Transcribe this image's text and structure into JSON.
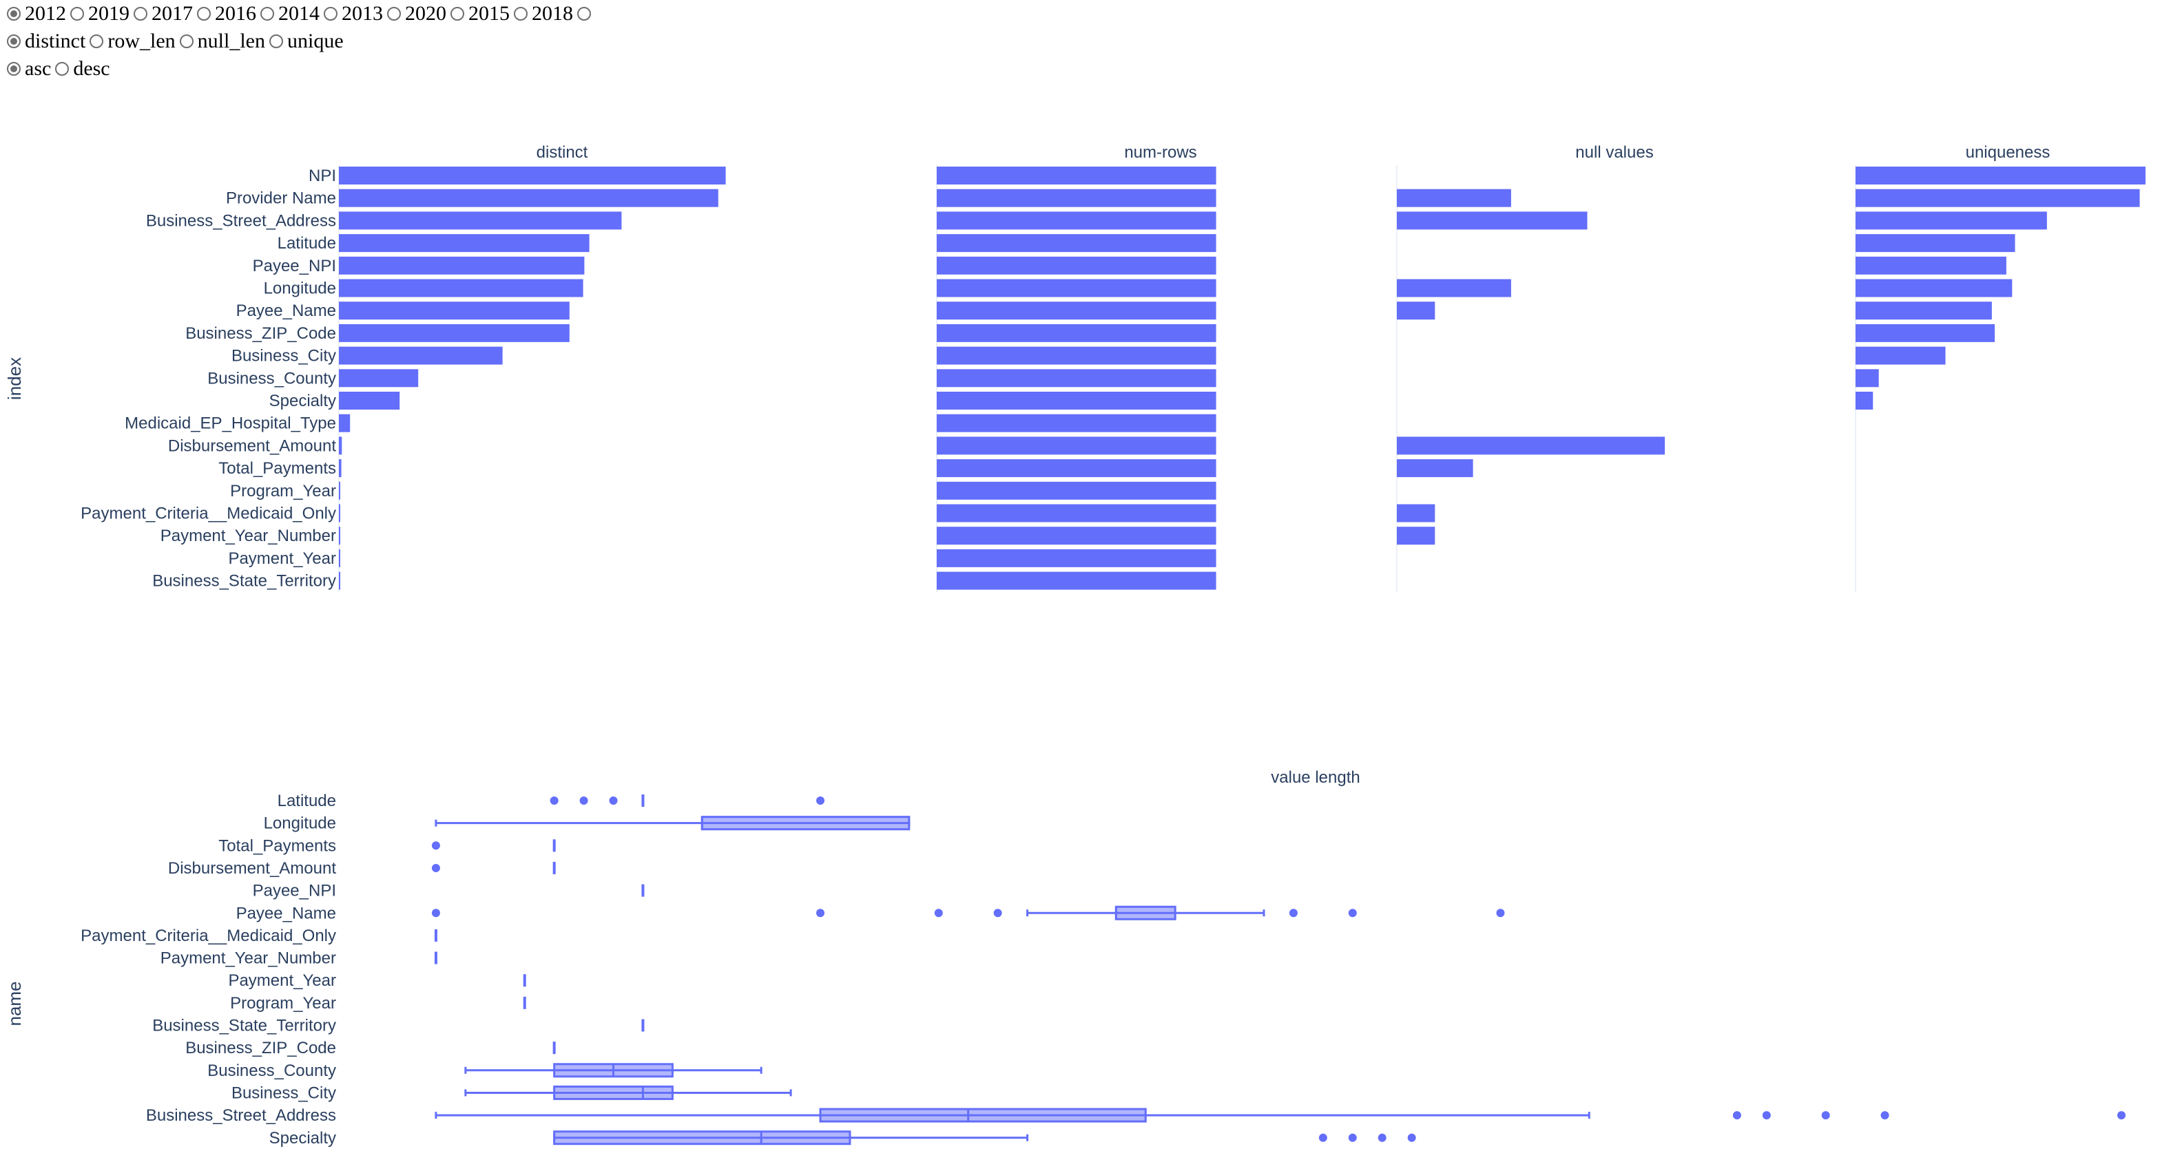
{
  "controls": {
    "year_options": [
      {
        "label": "2012",
        "checked": true
      },
      {
        "label": "2019",
        "checked": false
      },
      {
        "label": "2017",
        "checked": false
      },
      {
        "label": "2016",
        "checked": false
      },
      {
        "label": "2014",
        "checked": false
      },
      {
        "label": "2013",
        "checked": false
      },
      {
        "label": "2020",
        "checked": false
      },
      {
        "label": "2015",
        "checked": false
      },
      {
        "label": "2018",
        "checked": false
      },
      {
        "label": "",
        "checked": false
      }
    ],
    "metric_options": [
      {
        "label": "distinct",
        "checked": true
      },
      {
        "label": "row_len",
        "checked": false
      },
      {
        "label": "null_len",
        "checked": false
      },
      {
        "label": "unique",
        "checked": false
      }
    ],
    "order_options": [
      {
        "label": "asc",
        "checked": true
      },
      {
        "label": "desc",
        "checked": false
      }
    ]
  },
  "colors": {
    "bar": "#636efa",
    "box_fill": "rgba(99,110,250,0.5)",
    "axis_text": "#2a3f5f",
    "grid": "#ebf0f8"
  },
  "chart_data": [
    {
      "type": "bar",
      "orientation": "horizontal",
      "ylabel": "index",
      "categories": [
        "NPI",
        "Provider Name",
        "Business_Street_Address",
        "Latitude",
        "Payee_NPI",
        "Longitude",
        "Payee_Name",
        "Business_ZIP_Code",
        "Business_City",
        "Business_County",
        "Specialty",
        "Medicaid_EP_Hospital_Type",
        "Disbursement_Amount",
        "Total_Payments",
        "Program_Year",
        "Payment_Criteria__Medicaid_Only",
        "Payment_Year_Number",
        "Payment_Year",
        "Business_State_Territory"
      ],
      "panels": [
        {
          "title": "distinct",
          "xlim": [
            0,
            1800
          ],
          "values": [
            1560,
            1530,
            1140,
            1010,
            990,
            985,
            930,
            930,
            660,
            320,
            245,
            45,
            12,
            10,
            3,
            2,
            2,
            1,
            1
          ]
        },
        {
          "title": "num-rows",
          "xlim": [
            0,
            2500
          ],
          "values": [
            1560,
            1560,
            1560,
            1560,
            1560,
            1560,
            1560,
            1560,
            1560,
            1560,
            1560,
            1560,
            1560,
            1560,
            1560,
            1560,
            1560,
            1560,
            1560
          ]
        },
        {
          "title": "null values",
          "xlim": [
            0,
            1600
          ],
          "values": [
            0,
            420,
            700,
            0,
            0,
            420,
            140,
            0,
            0,
            0,
            0,
            0,
            985,
            280,
            0,
            140,
            140,
            0,
            0
          ]
        },
        {
          "title": "uniqueness",
          "xlim": [
            0,
            1.05
          ],
          "values": [
            1.0,
            0.98,
            0.66,
            0.55,
            0.52,
            0.54,
            0.47,
            0.48,
            0.31,
            0.08,
            0.06,
            0,
            0,
            0,
            0,
            0,
            0,
            0,
            0
          ]
        }
      ]
    },
    {
      "type": "box",
      "orientation": "horizontal",
      "title": "value length",
      "ylabel": "name",
      "xlim": [
        0,
        58
      ],
      "boxes": [
        {
          "name": "Latitude",
          "min": 8,
          "q1": 8,
          "median": 8,
          "q3": 8,
          "max": 8,
          "outliers": [
            5,
            6,
            7,
            14
          ]
        },
        {
          "name": "Longitude",
          "min": 1,
          "q1": 10,
          "median": 10,
          "q3": 17,
          "max": 17,
          "outliers": []
        },
        {
          "name": "Total_Payments",
          "min": 5,
          "q1": 5,
          "median": 5,
          "q3": 5,
          "max": 5,
          "outliers": [
            1
          ]
        },
        {
          "name": "Disbursement_Amount",
          "min": 5,
          "q1": 5,
          "median": 5,
          "q3": 5,
          "max": 5,
          "outliers": [
            1
          ]
        },
        {
          "name": "Payee_NPI",
          "min": 8,
          "q1": 8,
          "median": 8,
          "q3": 8,
          "max": 8,
          "outliers": []
        },
        {
          "name": "Payee_Name",
          "min": 21,
          "q1": 24,
          "median": 24,
          "q3": 26,
          "max": 29,
          "outliers": [
            1,
            14,
            18,
            20,
            30,
            32,
            37
          ]
        },
        {
          "name": "Payment_Criteria__Medicaid_Only",
          "min": 1,
          "q1": 1,
          "median": 1,
          "q3": 1,
          "max": 1,
          "outliers": []
        },
        {
          "name": "Payment_Year_Number",
          "min": 1,
          "q1": 1,
          "median": 1,
          "q3": 1,
          "max": 1,
          "outliers": []
        },
        {
          "name": "Payment_Year",
          "min": 4,
          "q1": 4,
          "median": 4,
          "q3": 4,
          "max": 4,
          "outliers": []
        },
        {
          "name": "Program_Year",
          "min": 4,
          "q1": 4,
          "median": 4,
          "q3": 4,
          "max": 4,
          "outliers": []
        },
        {
          "name": "Business_State_Territory",
          "min": 8,
          "q1": 8,
          "median": 8,
          "q3": 8,
          "max": 8,
          "outliers": []
        },
        {
          "name": "Business_ZIP_Code",
          "min": 5,
          "q1": 5,
          "median": 5,
          "q3": 5,
          "max": 5,
          "outliers": []
        },
        {
          "name": "Business_County",
          "min": 2,
          "q1": 5,
          "median": 7,
          "q3": 9,
          "max": 12,
          "outliers": []
        },
        {
          "name": "Business_City",
          "min": 2,
          "q1": 5,
          "median": 8,
          "q3": 9,
          "max": 13,
          "outliers": []
        },
        {
          "name": "Business_Street_Address",
          "min": 1,
          "q1": 14,
          "median": 19,
          "q3": 25,
          "max": 40,
          "outliers": [
            45,
            46,
            48,
            50,
            58
          ]
        },
        {
          "name": "Specialty",
          "min": 5,
          "q1": 5,
          "median": 12,
          "q3": 15,
          "max": 21,
          "outliers": [
            31,
            32,
            33,
            34
          ]
        }
      ]
    }
  ]
}
